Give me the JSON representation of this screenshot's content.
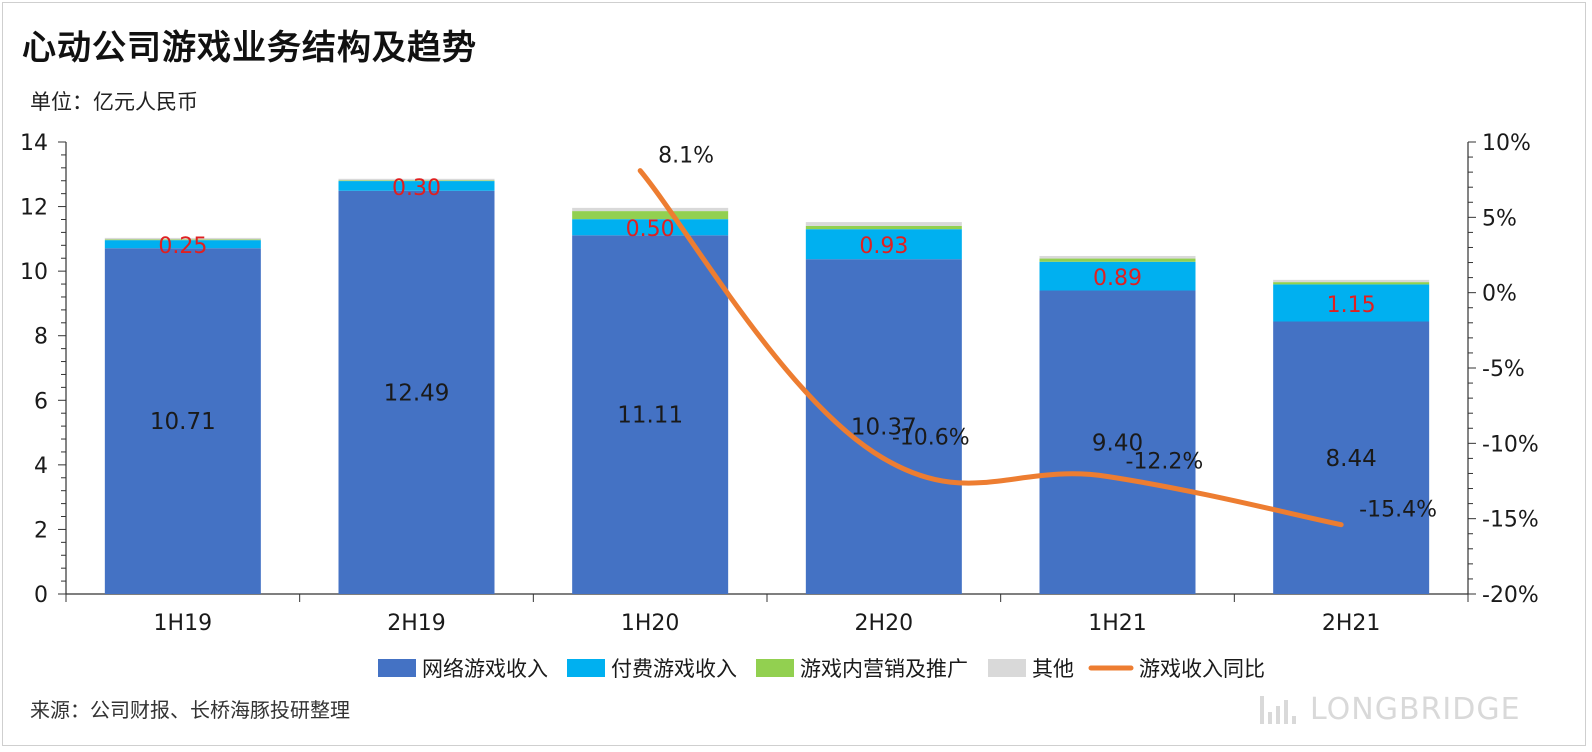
{
  "page": {
    "title": "心动公司游戏业务结构及趋势",
    "unit": "单位：亿元人民币",
    "source": "来源：公司财报、长桥海豚投研整理",
    "brand": "LONGBRIDGE"
  },
  "chart_data": {
    "type": "bar",
    "stacked": true,
    "title": "心动公司游戏业务结构及趋势",
    "categories": [
      "1H19",
      "2H19",
      "1H20",
      "2H20",
      "1H21",
      "2H21"
    ],
    "ylim": [
      0,
      14
    ],
    "yticks": [
      "0",
      "2",
      "4",
      "6",
      "8",
      "10",
      "12",
      "14"
    ],
    "y2lim": [
      -20,
      10
    ],
    "y2ticks": [
      "-20%",
      "-15%",
      "-10%",
      "-5%",
      "0%",
      "5%",
      "10%"
    ],
    "grid": false,
    "legend_position": "bottom",
    "series": [
      {
        "name": "网络游戏收入",
        "color": "#4472C4",
        "values": [
          10.71,
          12.49,
          11.11,
          10.37,
          9.4,
          8.44
        ],
        "labels": [
          "10.71",
          "12.49",
          "11.11",
          "10.37",
          "9.40",
          "8.44"
        ],
        "label_color": "#1a1a1a"
      },
      {
        "name": "付费游戏收入",
        "color": "#00B0F0",
        "values": [
          0.25,
          0.3,
          0.5,
          0.93,
          0.89,
          1.15
        ],
        "labels": [
          "0.25",
          "0.30",
          "0.50",
          "0.93",
          "0.89",
          "1.15"
        ],
        "label_color": "#E02020"
      },
      {
        "name": "游戏内营销及推广",
        "color": "#92D050",
        "values": [
          0.02,
          0.02,
          0.25,
          0.1,
          0.1,
          0.07
        ]
      },
      {
        "name": "其他",
        "color": "#D9D9D9",
        "values": [
          0.05,
          0.05,
          0.1,
          0.12,
          0.08,
          0.07
        ]
      }
    ],
    "line": {
      "name": "游戏收入同比",
      "color": "#ED7D31",
      "axis": "right",
      "categories": [
        "1H20",
        "2H20",
        "1H21",
        "2H21"
      ],
      "values": [
        8.1,
        -10.6,
        -12.2,
        -15.4
      ],
      "labels": [
        "8.1%",
        "-10.6%",
        "-12.2%",
        "-15.4%"
      ]
    }
  }
}
